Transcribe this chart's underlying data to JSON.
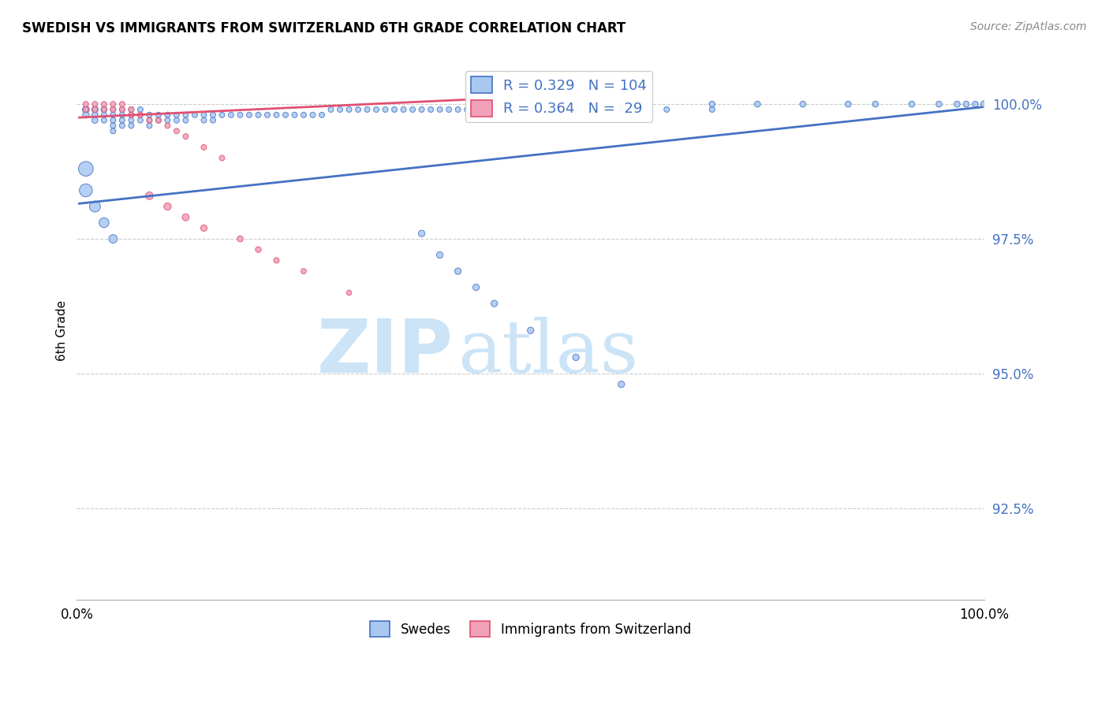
{
  "title": "SWEDISH VS IMMIGRANTS FROM SWITZERLAND 6TH GRADE CORRELATION CHART",
  "source": "Source: ZipAtlas.com",
  "ylabel": "6th Grade",
  "ytick_labels": [
    "100.0%",
    "97.5%",
    "95.0%",
    "92.5%"
  ],
  "ytick_values": [
    1.0,
    0.975,
    0.95,
    0.925
  ],
  "xlim": [
    0.0,
    1.0
  ],
  "ylim": [
    0.908,
    1.008
  ],
  "legend_label_blue": "Swedes",
  "legend_label_pink": "Immigrants from Switzerland",
  "r_blue": 0.329,
  "n_blue": 104,
  "r_pink": 0.364,
  "n_pink": 29,
  "blue_color": "#a8c8f0",
  "pink_color": "#f0a0b8",
  "trendline_blue": "#4472c4",
  "trendline_pink": "#e05070",
  "blue_scatter_x": [
    0.01,
    0.01,
    0.02,
    0.02,
    0.02,
    0.03,
    0.03,
    0.03,
    0.04,
    0.04,
    0.04,
    0.04,
    0.04,
    0.05,
    0.05,
    0.05,
    0.05,
    0.06,
    0.06,
    0.06,
    0.06,
    0.07,
    0.07,
    0.07,
    0.08,
    0.08,
    0.08,
    0.09,
    0.09,
    0.1,
    0.1,
    0.11,
    0.11,
    0.12,
    0.12,
    0.13,
    0.14,
    0.14,
    0.15,
    0.15,
    0.16,
    0.17,
    0.18,
    0.19,
    0.2,
    0.21,
    0.22,
    0.23,
    0.24,
    0.25,
    0.26,
    0.27,
    0.28,
    0.29,
    0.3,
    0.31,
    0.32,
    0.33,
    0.34,
    0.35,
    0.36,
    0.37,
    0.38,
    0.39,
    0.4,
    0.41,
    0.42,
    0.43,
    0.44,
    0.45,
    0.46,
    0.47,
    0.48,
    0.5,
    0.52,
    0.55,
    0.57,
    0.6,
    0.65,
    0.7,
    0.38,
    0.4,
    0.42,
    0.44,
    0.46,
    0.5,
    0.55,
    0.6,
    0.7,
    0.75,
    0.8,
    0.85,
    0.88,
    0.92,
    0.95,
    0.97,
    0.98,
    0.99,
    1.0,
    0.01,
    0.01,
    0.02,
    0.03,
    0.04
  ],
  "blue_scatter_y": [
    0.999,
    0.998,
    0.999,
    0.998,
    0.997,
    0.999,
    0.998,
    0.997,
    0.999,
    0.998,
    0.997,
    0.996,
    0.995,
    0.999,
    0.998,
    0.997,
    0.996,
    0.999,
    0.998,
    0.997,
    0.996,
    0.999,
    0.998,
    0.997,
    0.998,
    0.997,
    0.996,
    0.998,
    0.997,
    0.998,
    0.997,
    0.998,
    0.997,
    0.998,
    0.997,
    0.998,
    0.998,
    0.997,
    0.998,
    0.997,
    0.998,
    0.998,
    0.998,
    0.998,
    0.998,
    0.998,
    0.998,
    0.998,
    0.998,
    0.998,
    0.998,
    0.998,
    0.999,
    0.999,
    0.999,
    0.999,
    0.999,
    0.999,
    0.999,
    0.999,
    0.999,
    0.999,
    0.999,
    0.999,
    0.999,
    0.999,
    0.999,
    0.999,
    0.999,
    0.999,
    0.999,
    0.999,
    0.999,
    0.999,
    0.999,
    0.999,
    0.999,
    0.999,
    0.999,
    0.999,
    0.976,
    0.972,
    0.969,
    0.966,
    0.963,
    0.958,
    0.953,
    0.948,
    1.0,
    1.0,
    1.0,
    1.0,
    1.0,
    1.0,
    1.0,
    1.0,
    1.0,
    1.0,
    1.0,
    0.988,
    0.984,
    0.981,
    0.978,
    0.975
  ],
  "blue_scatter_size": [
    40,
    35,
    35,
    30,
    30,
    30,
    25,
    25,
    25,
    25,
    25,
    25,
    25,
    25,
    25,
    25,
    25,
    25,
    25,
    25,
    25,
    25,
    25,
    25,
    25,
    25,
    25,
    25,
    25,
    25,
    25,
    25,
    25,
    25,
    25,
    25,
    25,
    25,
    25,
    25,
    25,
    25,
    25,
    25,
    25,
    25,
    25,
    25,
    25,
    25,
    25,
    25,
    25,
    25,
    25,
    25,
    25,
    25,
    25,
    25,
    25,
    25,
    25,
    25,
    25,
    25,
    25,
    25,
    25,
    25,
    25,
    25,
    25,
    25,
    25,
    25,
    25,
    25,
    25,
    25,
    35,
    35,
    35,
    35,
    35,
    35,
    35,
    35,
    30,
    30,
    30,
    30,
    30,
    30,
    30,
    30,
    30,
    30,
    40,
    180,
    140,
    100,
    80,
    60
  ],
  "pink_scatter_x": [
    0.01,
    0.01,
    0.02,
    0.02,
    0.03,
    0.03,
    0.04,
    0.04,
    0.05,
    0.05,
    0.06,
    0.06,
    0.07,
    0.08,
    0.09,
    0.1,
    0.11,
    0.12,
    0.14,
    0.16,
    0.08,
    0.1,
    0.12,
    0.14,
    0.18,
    0.2,
    0.22,
    0.25,
    0.3
  ],
  "pink_scatter_y": [
    1.0,
    0.999,
    1.0,
    0.999,
    1.0,
    0.999,
    1.0,
    0.999,
    1.0,
    0.999,
    0.999,
    0.998,
    0.998,
    0.997,
    0.997,
    0.996,
    0.995,
    0.994,
    0.992,
    0.99,
    0.983,
    0.981,
    0.979,
    0.977,
    0.975,
    0.973,
    0.971,
    0.969,
    0.965
  ],
  "pink_scatter_size": [
    25,
    25,
    25,
    25,
    25,
    25,
    25,
    25,
    25,
    25,
    25,
    25,
    25,
    25,
    25,
    25,
    25,
    25,
    25,
    25,
    50,
    45,
    40,
    35,
    30,
    28,
    26,
    24,
    22
  ],
  "trendline_blue_start_x": 0.0,
  "trendline_blue_start_y": 0.9815,
  "trendline_blue_end_x": 1.0,
  "trendline_blue_end_y": 0.9995,
  "trendline_pink_start_x": 0.0,
  "trendline_pink_start_y": 0.9975,
  "trendline_pink_end_x": 0.45,
  "trendline_pink_end_y": 1.001,
  "watermark_zip": "ZIP",
  "watermark_atlas": "atlas",
  "watermark_color": "#cce4f6",
  "grid_color": "#cccccc"
}
